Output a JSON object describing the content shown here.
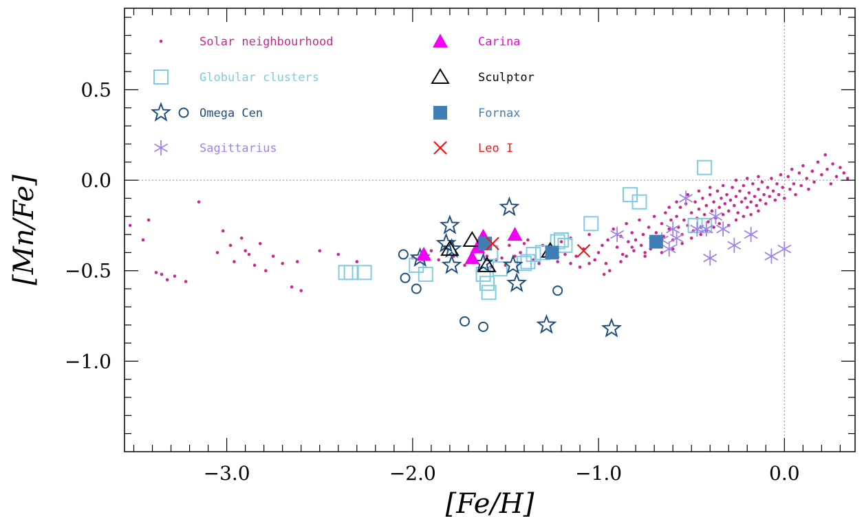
{
  "chart_data": {
    "type": "scatter",
    "xlabel": "[Fe/H]",
    "ylabel": "[Mn/Fe]",
    "xlim": [
      -3.55,
      0.38
    ],
    "ylim": [
      -1.5,
      0.95
    ],
    "x_ticks": [
      {
        "value": -3.0,
        "label": "−3.0"
      },
      {
        "value": -2.0,
        "label": "−2.0"
      },
      {
        "value": -1.0,
        "label": "−1.0"
      },
      {
        "value": 0.0,
        "label": "0.0"
      }
    ],
    "y_ticks": [
      {
        "value": 0.5,
        "label": "0.5"
      },
      {
        "value": 0.0,
        "label": "0.0"
      },
      {
        "value": -0.5,
        "label": "−0.5"
      },
      {
        "value": -1.0,
        "label": "−1.0"
      }
    ],
    "grid": false,
    "reference_lines": {
      "y": 0.0,
      "x": 0.0
    },
    "legend_position": "top-left",
    "series": [
      {
        "name": "Solar neighbourhood",
        "marker": "dot",
        "color": "#c8288c",
        "points": [
          [
            -3.52,
            -0.25
          ],
          [
            -3.45,
            -0.33
          ],
          [
            -3.42,
            -0.22
          ],
          [
            -3.38,
            -0.51
          ],
          [
            -3.35,
            -0.52
          ],
          [
            -3.32,
            -0.55
          ],
          [
            -3.28,
            -0.53
          ],
          [
            -3.22,
            -0.56
          ],
          [
            -3.15,
            -0.12
          ],
          [
            -3.05,
            -0.4
          ],
          [
            -3.02,
            -0.28
          ],
          [
            -2.98,
            -0.36
          ],
          [
            -2.96,
            -0.45
          ],
          [
            -2.92,
            -0.32
          ],
          [
            -2.9,
            -0.39
          ],
          [
            -2.88,
            -0.41
          ],
          [
            -2.85,
            -0.47
          ],
          [
            -2.82,
            -0.35
          ],
          [
            -2.79,
            -0.5
          ],
          [
            -2.75,
            -0.42
          ],
          [
            -2.7,
            -0.46
          ],
          [
            -2.65,
            -0.59
          ],
          [
            -2.62,
            -0.45
          ],
          [
            -2.6,
            -0.61
          ],
          [
            -2.5,
            -0.39
          ],
          [
            -2.4,
            -0.41
          ],
          [
            -2.3,
            -0.45
          ],
          [
            -2.0,
            -0.43
          ],
          [
            -1.95,
            -0.4
          ],
          [
            -1.9,
            -0.39
          ],
          [
            -1.86,
            -0.44
          ],
          [
            -1.78,
            -0.42
          ],
          [
            -1.72,
            -0.47
          ],
          [
            -1.65,
            -0.38
          ],
          [
            -1.55,
            -0.44
          ],
          [
            -1.52,
            -0.43
          ],
          [
            -1.5,
            -0.47
          ],
          [
            -1.48,
            -0.36
          ],
          [
            -1.42,
            -0.4
          ],
          [
            -1.38,
            -0.33
          ],
          [
            -1.35,
            -0.44
          ],
          [
            -1.3,
            -0.36
          ],
          [
            -1.28,
            -0.42
          ],
          [
            -1.25,
            -0.38
          ],
          [
            -1.22,
            -0.45
          ],
          [
            -1.2,
            -0.34
          ],
          [
            -1.18,
            -0.41
          ],
          [
            -1.15,
            -0.32
          ],
          [
            -1.12,
            -0.42
          ],
          [
            -1.1,
            -0.48
          ],
          [
            -1.08,
            -0.38
          ],
          [
            -1.05,
            -0.3
          ],
          [
            -1.02,
            -0.44
          ],
          [
            -1.0,
            -0.4
          ],
          [
            -0.98,
            -0.36
          ],
          [
            -0.96,
            -0.46
          ],
          [
            -0.94,
            -0.5
          ],
          [
            -0.92,
            -0.27
          ],
          [
            -0.9,
            -0.37
          ],
          [
            -0.88,
            -0.31
          ],
          [
            -0.87,
            -0.41
          ],
          [
            -0.85,
            -0.24
          ],
          [
            -0.84,
            -0.34
          ],
          [
            -0.82,
            -0.29
          ],
          [
            -0.81,
            -0.39
          ],
          [
            -0.8,
            -0.33
          ],
          [
            -0.78,
            -0.22
          ],
          [
            -0.77,
            -0.36
          ],
          [
            -0.76,
            -0.3
          ],
          [
            -0.75,
            -0.4
          ],
          [
            -0.73,
            -0.26
          ],
          [
            -0.72,
            -0.32
          ],
          [
            -0.7,
            -0.2
          ],
          [
            -0.69,
            -0.29
          ],
          [
            -0.68,
            -0.35
          ],
          [
            -0.66,
            -0.24
          ],
          [
            -0.65,
            -0.31
          ],
          [
            -0.64,
            -0.18
          ],
          [
            -0.62,
            -0.27
          ],
          [
            -0.61,
            -0.22
          ],
          [
            -0.6,
            -0.33
          ],
          [
            -0.58,
            -0.2
          ],
          [
            -0.57,
            -0.26
          ],
          [
            -0.56,
            -0.15
          ],
          [
            -0.55,
            -0.3
          ],
          [
            -0.54,
            -0.22
          ],
          [
            -0.53,
            -0.13
          ],
          [
            -0.52,
            -0.25
          ],
          [
            -0.5,
            -0.18
          ],
          [
            -0.49,
            -0.28
          ],
          [
            -0.48,
            -0.12
          ],
          [
            -0.47,
            -0.21
          ],
          [
            -0.46,
            -0.16
          ],
          [
            -0.45,
            -0.26
          ],
          [
            -0.44,
            -0.1
          ],
          [
            -0.43,
            -0.19
          ],
          [
            -0.42,
            -0.14
          ],
          [
            -0.41,
            -0.23
          ],
          [
            -0.4,
            -0.08
          ],
          [
            -0.39,
            -0.17
          ],
          [
            -0.38,
            -0.12
          ],
          [
            -0.37,
            -0.21
          ],
          [
            -0.36,
            -0.06
          ],
          [
            -0.35,
            -0.15
          ],
          [
            -0.34,
            -0.1
          ],
          [
            -0.33,
            -0.19
          ],
          [
            -0.32,
            -0.13
          ],
          [
            -0.31,
            -0.08
          ],
          [
            -0.3,
            -0.17
          ],
          [
            -0.29,
            -0.11
          ],
          [
            -0.28,
            -0.04
          ],
          [
            -0.27,
            -0.14
          ],
          [
            -0.26,
            -0.09
          ],
          [
            -0.25,
            -0.18
          ],
          [
            -0.24,
            -0.06
          ],
          [
            -0.23,
            -0.12
          ],
          [
            -0.22,
            -0.03
          ],
          [
            -0.21,
            -0.1
          ],
          [
            -0.2,
            -0.15
          ],
          [
            -0.19,
            -0.07
          ],
          [
            -0.18,
            -0.12
          ],
          [
            -0.17,
            -0.02
          ],
          [
            -0.16,
            -0.09
          ],
          [
            -0.15,
            -0.14
          ],
          [
            -0.14,
            -0.05
          ],
          [
            -0.13,
            -0.11
          ],
          [
            -0.12,
            -0.01
          ],
          [
            -0.11,
            -0.08
          ],
          [
            -0.1,
            -0.13
          ],
          [
            -0.09,
            -0.04
          ],
          [
            -0.08,
            -0.09
          ],
          [
            -0.07,
            0.01
          ],
          [
            -0.06,
            -0.06
          ],
          [
            -0.05,
            -0.11
          ],
          [
            -0.04,
            -0.02
          ],
          [
            -0.03,
            -0.08
          ],
          [
            -0.02,
            0.03
          ],
          [
            -0.01,
            -0.04
          ],
          [
            0.0,
            -0.1
          ],
          [
            0.02,
            0.02
          ],
          [
            0.03,
            -0.05
          ],
          [
            0.04,
            0.06
          ],
          [
            0.05,
            -0.02
          ],
          [
            0.06,
            -0.08
          ],
          [
            0.08,
            0.04
          ],
          [
            0.09,
            -0.03
          ],
          [
            0.1,
            0.08
          ],
          [
            0.12,
            0.01
          ],
          [
            0.13,
            -0.05
          ],
          [
            0.15,
            0.05
          ],
          [
            0.16,
            -0.01
          ],
          [
            0.18,
            0.1
          ],
          [
            0.2,
            0.03
          ],
          [
            0.22,
            0.14
          ],
          [
            0.23,
            0.06
          ],
          [
            0.25,
            -0.02
          ],
          [
            0.26,
            0.09
          ],
          [
            0.28,
            0.02
          ],
          [
            0.3,
            0.07
          ],
          [
            0.32,
            0.04
          ],
          [
            0.34,
            0.01
          ],
          [
            -0.85,
            -0.42
          ],
          [
            -0.88,
            -0.45
          ],
          [
            -0.95,
            -0.33
          ],
          [
            -0.75,
            -0.42
          ],
          [
            -0.72,
            -0.38
          ],
          [
            -0.66,
            -0.4
          ],
          [
            -0.6,
            -0.38
          ],
          [
            -0.55,
            -0.35
          ],
          [
            -0.5,
            -0.32
          ],
          [
            -0.45,
            -0.3
          ],
          [
            -0.42,
            -0.28
          ],
          [
            -0.38,
            -0.26
          ],
          [
            -0.35,
            -0.24
          ],
          [
            -0.3,
            -0.25
          ],
          [
            -0.26,
            -0.22
          ],
          [
            -0.22,
            -0.2
          ],
          [
            -0.18,
            -0.19
          ],
          [
            -0.14,
            -0.17
          ],
          [
            -0.62,
            -0.15
          ],
          [
            -0.58,
            -0.12
          ],
          [
            -0.52,
            -0.08
          ],
          [
            -0.46,
            -0.06
          ],
          [
            -0.4,
            -0.04
          ],
          [
            -0.33,
            -0.03
          ],
          [
            -0.26,
            0.0
          ],
          [
            -0.2,
            0.01
          ],
          [
            -0.14,
            0.02
          ],
          [
            -1.6,
            -0.42
          ],
          [
            -1.58,
            -0.48
          ],
          [
            -1.45,
            -0.42
          ],
          [
            -1.4,
            -0.35
          ],
          [
            -1.32,
            -0.46
          ],
          [
            -1.15,
            -0.46
          ],
          [
            -1.05,
            -0.46
          ],
          [
            -0.97,
            -0.52
          ],
          [
            -0.82,
            -0.37
          ]
        ]
      },
      {
        "name": "Globular clusters",
        "marker": "square-open",
        "color": "#7ecbe3",
        "points": [
          [
            -2.36,
            -0.51
          ],
          [
            -2.33,
            -0.51
          ],
          [
            -2.26,
            -0.51
          ],
          [
            -1.98,
            -0.47
          ],
          [
            -1.93,
            -0.52
          ],
          [
            -1.62,
            -0.52
          ],
          [
            -1.6,
            -0.57
          ],
          [
            -1.59,
            -0.62
          ],
          [
            -1.58,
            -0.4
          ],
          [
            -1.53,
            -0.49
          ],
          [
            -1.4,
            -0.46
          ],
          [
            -1.38,
            -0.45
          ],
          [
            -1.35,
            -0.41
          ],
          [
            -1.3,
            -0.4
          ],
          [
            -1.22,
            -0.34
          ],
          [
            -1.2,
            -0.33
          ],
          [
            -1.18,
            -0.36
          ],
          [
            -1.04,
            -0.24
          ],
          [
            -0.83,
            -0.08
          ],
          [
            -0.78,
            -0.12
          ],
          [
            -0.48,
            -0.25
          ],
          [
            -0.43,
            -0.25
          ],
          [
            -0.43,
            0.07
          ]
        ]
      },
      {
        "name": "Omega Cen",
        "marker": "star-open",
        "color": "#1d4e7e",
        "points": [
          [
            -1.96,
            -0.43
          ],
          [
            -1.82,
            -0.35
          ],
          [
            -1.8,
            -0.25
          ],
          [
            -1.79,
            -0.38
          ],
          [
            -1.79,
            -0.47
          ],
          [
            -1.62,
            -0.46
          ],
          [
            -1.48,
            -0.15
          ],
          [
            -1.46,
            -0.47
          ],
          [
            -1.44,
            -0.57
          ],
          [
            -1.28,
            -0.8
          ],
          [
            -0.93,
            -0.82
          ]
        ]
      },
      {
        "name": "Omega Cen (circles)",
        "marker": "circle-open",
        "color": "#1d4e7e",
        "points": [
          [
            -2.05,
            -0.41
          ],
          [
            -2.04,
            -0.54
          ],
          [
            -1.98,
            -0.6
          ],
          [
            -1.72,
            -0.78
          ],
          [
            -1.62,
            -0.81
          ],
          [
            -1.22,
            -0.61
          ]
        ]
      },
      {
        "name": "Sagittarius",
        "marker": "asterisk",
        "color": "#9e83ed",
        "points": [
          [
            -0.9,
            -0.3
          ],
          [
            -0.66,
            -0.33
          ],
          [
            -0.62,
            -0.38
          ],
          [
            -0.6,
            -0.27
          ],
          [
            -0.58,
            -0.32
          ],
          [
            -0.53,
            -0.1
          ],
          [
            -0.47,
            -0.27
          ],
          [
            -0.42,
            -0.27
          ],
          [
            -0.4,
            -0.43
          ],
          [
            -0.37,
            -0.2
          ],
          [
            -0.33,
            -0.27
          ],
          [
            -0.27,
            -0.36
          ],
          [
            -0.18,
            -0.3
          ],
          [
            -0.07,
            -0.42
          ],
          [
            0.0,
            -0.38
          ]
        ]
      },
      {
        "name": "Carina",
        "marker": "triangle-filled",
        "color": "#f200f2",
        "points": [
          [
            -1.94,
            -0.41
          ],
          [
            -1.68,
            -0.43
          ],
          [
            -1.65,
            -0.37
          ],
          [
            -1.62,
            -0.31
          ],
          [
            -1.45,
            -0.3
          ]
        ]
      },
      {
        "name": "Sculptor",
        "marker": "triangle-open",
        "color": "#000000",
        "points": [
          [
            -1.8,
            -0.38
          ],
          [
            -1.68,
            -0.33
          ],
          [
            -1.6,
            -0.47
          ],
          [
            -1.26,
            -0.39
          ]
        ]
      },
      {
        "name": "Fornax",
        "marker": "square-filled",
        "color": "#3f7fb4",
        "points": [
          [
            -1.61,
            -0.35
          ],
          [
            -1.25,
            -0.4
          ],
          [
            -0.69,
            -0.34
          ]
        ]
      },
      {
        "name": "Leo I",
        "marker": "cross",
        "color": "#ff1010",
        "points": [
          [
            -1.57,
            -0.35
          ],
          [
            -1.08,
            -0.39
          ]
        ]
      }
    ],
    "legend": [
      {
        "label": "Solar neighbourhood",
        "marker": "dot",
        "color": "#c8288c",
        "column": 0,
        "row": 0
      },
      {
        "label": "Globular clusters",
        "marker": "square-open",
        "color": "#7ecbe3",
        "column": 0,
        "row": 1
      },
      {
        "label": "Omega Cen",
        "marker": "star-circle",
        "color": "#1d4e7e",
        "column": 0,
        "row": 2
      },
      {
        "label": "Sagittarius",
        "marker": "asterisk",
        "color": "#9e83ed",
        "column": 0,
        "row": 3
      },
      {
        "label": "Carina",
        "marker": "triangle-filled",
        "color": "#f200f2",
        "column": 1,
        "row": 0
      },
      {
        "label": "Sculptor",
        "marker": "triangle-open",
        "color": "#000000",
        "column": 1,
        "row": 1
      },
      {
        "label": "Fornax",
        "marker": "square-filled",
        "color": "#3f7fb4",
        "column": 1,
        "row": 2
      },
      {
        "label": "Leo I",
        "marker": "cross",
        "color": "#ff1010",
        "column": 1,
        "row": 3
      }
    ]
  }
}
